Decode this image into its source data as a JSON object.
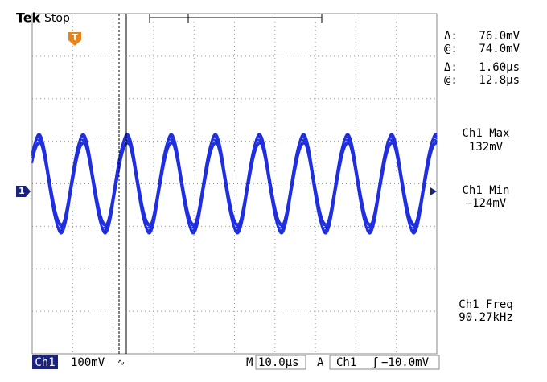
{
  "header": {
    "brand": "Tek",
    "status": "Stop",
    "trigger_marker": "T",
    "channel_marker": "1"
  },
  "cursors": {
    "amp_delta_label": "Δ:",
    "amp_delta": "76.0mV",
    "amp_at_label": "@:",
    "amp_at": "74.0mV",
    "time_delta_label": "Δ:",
    "time_delta": "1.60µs",
    "time_at_label": "@:",
    "time_at": "12.8µs"
  },
  "measurements": [
    {
      "name": "Ch1 Max",
      "value": "132mV"
    },
    {
      "name": "Ch1 Min",
      "value": "−124mV"
    },
    {
      "name": "Ch1 Freq",
      "value": "90.27kHz"
    }
  ],
  "footer": {
    "channel": "Ch1",
    "scale": "100mV",
    "time_label": "M",
    "time_scale": "10.0µs",
    "trigger_label": "A",
    "trigger_channel": "Ch1",
    "trigger_level": "−10.0mV"
  }
}
